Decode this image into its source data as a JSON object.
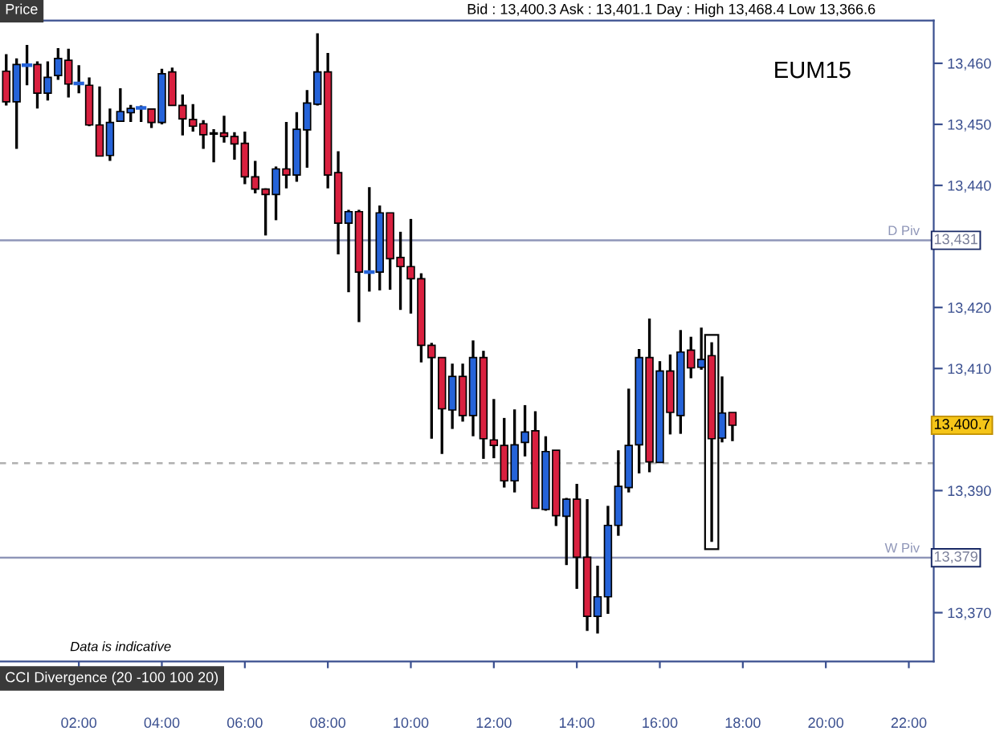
{
  "chart_data": {
    "type": "candlestick",
    "title": "EUM15",
    "subtitle": "Bid : 13,400.3 Ask : 13,401.1 Day : High 13,468.4 Low 13,366.6",
    "annotations": [
      "Price",
      "Data is indicative",
      "CCI Divergence (20 -100 100 20)",
      "13,400.7",
      "13,431",
      "13,379"
    ],
    "x": [
      0.25,
      0.5,
      0.75,
      1.0,
      1.25,
      1.5,
      1.75,
      2.0,
      2.25,
      2.5,
      2.75,
      3.0,
      3.25,
      3.5,
      3.75,
      4.0,
      4.25,
      4.5,
      4.75,
      5.0,
      5.25,
      5.5,
      5.75,
      6.0,
      6.25,
      6.5,
      6.75,
      7.0,
      7.25,
      7.5,
      7.75,
      8.0,
      8.25,
      8.5,
      8.75,
      9.0,
      9.25,
      9.5,
      9.75,
      10.0,
      10.25,
      10.5,
      10.75,
      11.0,
      11.25,
      11.5,
      11.75,
      12.0,
      12.25,
      12.5,
      12.75,
      13.0,
      13.25,
      13.5,
      13.75,
      14.0,
      14.25,
      14.5,
      14.75,
      15.0,
      15.25,
      15.5,
      15.75,
      16.0,
      16.25,
      16.5,
      16.75,
      17.0,
      17.25,
      17.5,
      17.75
    ],
    "ohlc": [
      [
        13458.7,
        13461.5,
        13453.1,
        13453.7
      ],
      [
        13453.7,
        13460.8,
        13446.0,
        13459.8
      ],
      [
        13459.7,
        13463.0,
        13456.4,
        13459.7
      ],
      [
        13459.8,
        13460.3,
        13452.6,
        13455.1
      ],
      [
        13455.1,
        13460.3,
        13453.9,
        13457.7
      ],
      [
        13458.0,
        13462.5,
        13457.3,
        13460.8
      ],
      [
        13460.5,
        13462.4,
        13454.4,
        13456.6
      ],
      [
        13456.7,
        13459.7,
        13455.1,
        13456.7
      ],
      [
        13456.4,
        13457.7,
        13449.7,
        13449.9
      ],
      [
        13449.9,
        13456.2,
        13444.8,
        13444.8
      ],
      [
        13444.9,
        13452.6,
        13444.0,
        13450.3
      ],
      [
        13450.5,
        13455.9,
        13450.4,
        13452.1
      ],
      [
        13451.9,
        13453.2,
        13450.4,
        13452.6
      ],
      [
        13452.7,
        13453.1,
        13450.4,
        13452.7
      ],
      [
        13452.5,
        13452.6,
        13449.4,
        13450.3
      ],
      [
        13450.3,
        13459.1,
        13450.0,
        13458.3
      ],
      [
        13458.6,
        13459.3,
        13453.1,
        13453.1
      ],
      [
        13453.1,
        13454.9,
        13448.2,
        13450.9
      ],
      [
        13450.8,
        13453.3,
        13448.8,
        13449.7
      ],
      [
        13450.1,
        13450.7,
        13446.0,
        13448.3
      ],
      [
        13448.4,
        13449.2,
        13443.8,
        13448.6
      ],
      [
        13448.6,
        13451.4,
        13447.0,
        13448.0
      ],
      [
        13448.0,
        13448.7,
        13444.2,
        13446.8
      ],
      [
        13446.9,
        13448.8,
        13440.2,
        13441.4
      ],
      [
        13441.4,
        13444.0,
        13438.7,
        13439.4
      ],
      [
        13439.4,
        13439.5,
        13431.8,
        13438.5
      ],
      [
        13438.5,
        13443.1,
        13434.3,
        13442.7
      ],
      [
        13442.7,
        13450.4,
        13439.5,
        13441.7
      ],
      [
        13441.7,
        13452.0,
        13440.6,
        13449.2
      ],
      [
        13449.1,
        13455.6,
        13442.9,
        13453.5
      ],
      [
        13453.3,
        13464.9,
        13453.1,
        13458.6
      ],
      [
        13458.6,
        13461.7,
        13439.5,
        13441.7
      ],
      [
        13442.1,
        13445.6,
        13428.7,
        13433.8
      ],
      [
        13433.8,
        13436.0,
        13422.5,
        13435.7
      ],
      [
        13435.7,
        13436.0,
        13417.6,
        13425.8
      ],
      [
        13425.8,
        13439.7,
        13422.6,
        13425.8
      ],
      [
        13425.8,
        13436.7,
        13422.8,
        13435.5
      ],
      [
        13435.5,
        13435.5,
        13422.9,
        13428.0
      ],
      [
        13428.2,
        13432.4,
        13419.6,
        13426.7
      ],
      [
        13426.7,
        13434.5,
        13419.0,
        13424.7
      ],
      [
        13424.7,
        13425.6,
        13411.0,
        13413.8
      ],
      [
        13413.8,
        13414.2,
        13398.5,
        13411.8
      ],
      [
        13411.8,
        13411.8,
        13396.0,
        13403.4
      ],
      [
        13403.2,
        13410.8,
        13400.1,
        13408.7
      ],
      [
        13408.7,
        13410.8,
        13401.3,
        13402.3
      ],
      [
        13402.3,
        13414.6,
        13398.9,
        13411.8
      ],
      [
        13411.8,
        13412.9,
        13395.2,
        13398.5
      ],
      [
        13398.3,
        13405.0,
        13395.3,
        13397.4
      ],
      [
        13397.4,
        13401.9,
        13390.5,
        13391.6
      ],
      [
        13391.6,
        13403.3,
        13389.7,
        13397.5
      ],
      [
        13397.9,
        13404.0,
        13395.6,
        13399.6
      ],
      [
        13399.8,
        13403.0,
        13387.1,
        13387.1
      ],
      [
        13386.9,
        13398.9,
        13386.7,
        13396.4
      ],
      [
        13396.6,
        13396.6,
        13384.2,
        13385.9
      ],
      [
        13385.8,
        13388.8,
        13377.8,
        13388.6
      ],
      [
        13388.6,
        13391.1,
        13373.9,
        13379.1
      ],
      [
        13379.1,
        13388.6,
        13367.0,
        13369.4
      ],
      [
        13369.4,
        13377.7,
        13366.6,
        13372.6
      ],
      [
        13372.6,
        13387.5,
        13369.8,
        13384.3
      ],
      [
        13384.3,
        13396.6,
        13382.6,
        13390.7
      ],
      [
        13390.5,
        13406.7,
        13389.7,
        13397.4
      ],
      [
        13397.5,
        13413.2,
        13392.8,
        13411.8
      ],
      [
        13411.8,
        13418.2,
        13393.0,
        13394.7
      ],
      [
        13394.6,
        13411.2,
        13394.6,
        13409.6
      ],
      [
        13409.6,
        13412.3,
        13399.2,
        13402.8
      ],
      [
        13402.3,
        13416.3,
        13399.3,
        13412.7
      ],
      [
        13413.0,
        13415.2,
        13408.4,
        13410.1
      ],
      [
        13410.2,
        13416.7,
        13409.8,
        13411.5
      ],
      [
        13412.1,
        13414.3,
        13381.6,
        13398.5
      ],
      [
        13398.6,
        13408.7,
        13397.9,
        13402.7
      ],
      [
        13402.8,
        13402.8,
        13398.1,
        13400.7
      ]
    ],
    "colors": [
      "#d9203f",
      "#2563d9",
      "#2563d9",
      "#d9203f",
      "#2563d9",
      "#2563d9",
      "#d9203f",
      "#2563d9",
      "#d9203f",
      "#d9203f",
      "#2563d9",
      "#2563d9",
      "#2563d9",
      "#2563d9",
      "#d9203f",
      "#2563d9",
      "#d9203f",
      "#d9203f",
      "#d9203f",
      "#d9203f",
      "#2563d9",
      "#d9203f",
      "#d9203f",
      "#d9203f",
      "#d9203f",
      "#d9203f",
      "#2563d9",
      "#d9203f",
      "#2563d9",
      "#2563d9",
      "#2563d9",
      "#d9203f",
      "#d9203f",
      "#2563d9",
      "#d9203f",
      "#2563d9",
      "#2563d9",
      "#d9203f",
      "#d9203f",
      "#d9203f",
      "#d9203f",
      "#d9203f",
      "#d9203f",
      "#2563d9",
      "#d9203f",
      "#2563d9",
      "#d9203f",
      "#d9203f",
      "#d9203f",
      "#2563d9",
      "#2563d9",
      "#d9203f",
      "#2563d9",
      "#d9203f",
      "#2563d9",
      "#d9203f",
      "#d9203f",
      "#2563d9",
      "#2563d9",
      "#2563d9",
      "#2563d9",
      "#2563d9",
      "#d9203f",
      "#2563d9",
      "#d9203f",
      "#2563d9",
      "#d9203f",
      "#2563d9",
      "#d9203f",
      "#2563d9",
      "#d9203f"
    ],
    "xlim": [
      0.1,
      22.6
    ],
    "xticks": [
      {
        "value": 2,
        "label": "02:00"
      },
      {
        "value": 4,
        "label": "04:00"
      },
      {
        "value": 6,
        "label": "06:00"
      },
      {
        "value": 8,
        "label": "08:00"
      },
      {
        "value": 10,
        "label": "10:00"
      },
      {
        "value": 12,
        "label": "12:00"
      },
      {
        "value": 14,
        "label": "14:00"
      },
      {
        "value": 16,
        "label": "16:00"
      },
      {
        "value": 18,
        "label": "18:00"
      },
      {
        "value": 20,
        "label": "20:00"
      },
      {
        "value": 22,
        "label": "22:00"
      }
    ],
    "ylim": [
      13362,
      13467
    ],
    "yticks": [
      {
        "value": 13370,
        "label": "13,370"
      },
      {
        "value": 13380,
        "label": null
      },
      {
        "value": 13390,
        "label": "13,390"
      },
      {
        "value": 13400,
        "label": null
      },
      {
        "value": 13410,
        "label": "13,410"
      },
      {
        "value": 13420,
        "label": "13,420"
      },
      {
        "value": 13430,
        "label": null
      },
      {
        "value": 13440,
        "label": "13,440"
      },
      {
        "value": 13450,
        "label": "13,450"
      },
      {
        "value": 13460,
        "label": "13,460"
      }
    ],
    "ref_lines": [
      {
        "axis": "y",
        "value": 13431,
        "label": "D Piv",
        "color": "#8f96b8",
        "line_style": "solid"
      },
      {
        "axis": "y",
        "value": 13379,
        "label": "W Piv",
        "color": "#8f96b8",
        "line_style": "solid"
      },
      {
        "axis": "y",
        "value": 13394.5,
        "color": "#b0b0b0",
        "line_style": "dashed"
      }
    ],
    "grid": false,
    "legend": false
  }
}
